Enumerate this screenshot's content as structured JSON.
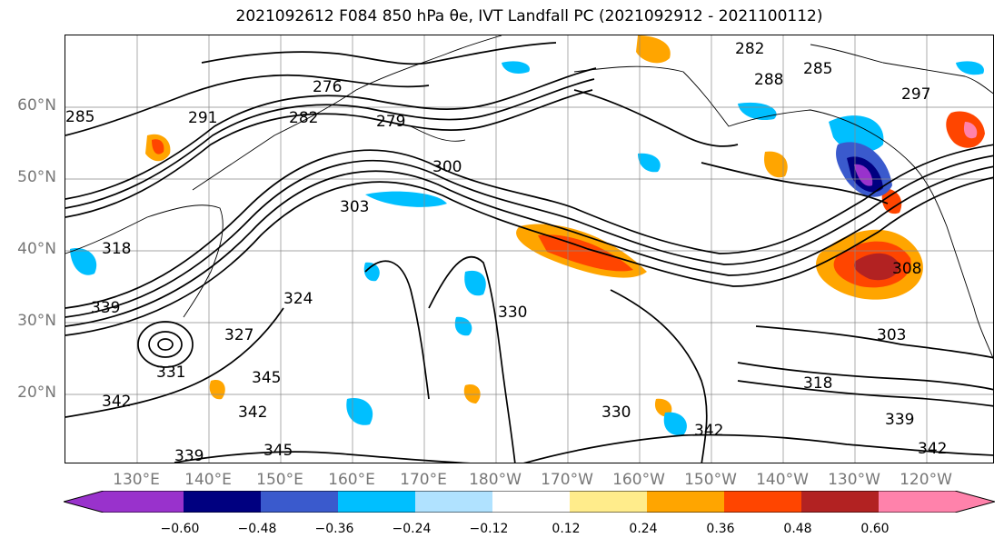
{
  "title": "2021092612 F084 850 hPa θe, IVT Landfall PC (2021092912 - 2021100112)",
  "map": {
    "lat_labels": [
      "60°N",
      "50°N",
      "40°N",
      "30°N",
      "20°N"
    ],
    "lon_labels": [
      "130°E",
      "140°E",
      "150°E",
      "160°E",
      "170°E",
      "180°W",
      "170°W",
      "160°W",
      "150°W",
      "140°W",
      "130°W",
      "120°W"
    ],
    "contour_labels": [
      "282",
      "276",
      "279",
      "288",
      "285",
      "297",
      "285",
      "291",
      "282",
      "300",
      "303",
      "308",
      "318",
      "324",
      "330",
      "339",
      "327",
      "331",
      "345",
      "342",
      "342",
      "330",
      "342",
      "339",
      "345",
      "339",
      "303",
      "318",
      "342"
    ],
    "colorbar": {
      "ticks": [
        "−0.60",
        "−0.48",
        "−0.36",
        "−0.24",
        "−0.12",
        "0.12",
        "0.24",
        "0.36",
        "0.48",
        "0.60"
      ],
      "colors": [
        "#9932cc",
        "#000080",
        "#3a5acd",
        "#00bfff",
        "#b0e2ff",
        "#ffffff",
        "#ffec8b",
        "#ffa500",
        "#ff4500",
        "#b22222",
        "#ff82ab"
      ]
    }
  }
}
